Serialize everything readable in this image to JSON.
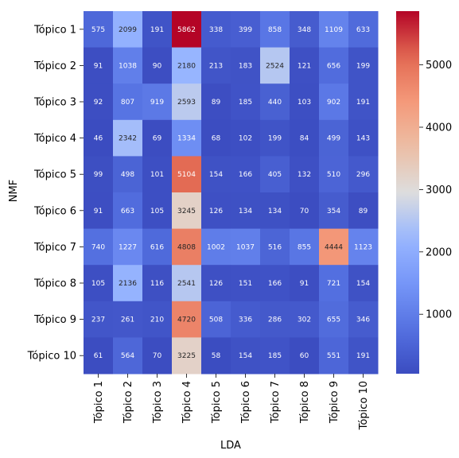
{
  "chart_data": {
    "type": "heatmap",
    "title": "",
    "xlabel": "LDA",
    "ylabel": "NMF",
    "x_categories": [
      "Tópico 1",
      "Tópico 2",
      "Tópico 3",
      "Tópico 4",
      "Tópico 5",
      "Tópico 6",
      "Tópico 7",
      "Tópico 8",
      "Tópico 9",
      "Tópico 10"
    ],
    "y_categories": [
      "Tópico 1",
      "Tópico 2",
      "Tópico 3",
      "Tópico 4",
      "Tópico 5",
      "Tópico 6",
      "Tópico 7",
      "Tópico 8",
      "Tópico 9",
      "Tópico 10"
    ],
    "values": [
      [
        575,
        2099,
        191,
        5862,
        338,
        399,
        858,
        348,
        1109,
        633
      ],
      [
        91,
        1038,
        90,
        2180,
        213,
        183,
        2524,
        121,
        656,
        199
      ],
      [
        92,
        807,
        919,
        2593,
        89,
        185,
        440,
        103,
        902,
        191
      ],
      [
        46,
        2342,
        69,
        1334,
        68,
        102,
        199,
        84,
        499,
        143
      ],
      [
        99,
        498,
        101,
        5104,
        154,
        166,
        405,
        132,
        510,
        296
      ],
      [
        91,
        663,
        105,
        3245,
        126,
        134,
        134,
        70,
        354,
        89
      ],
      [
        740,
        1227,
        616,
        4808,
        1002,
        1037,
        516,
        855,
        4444,
        1123
      ],
      [
        105,
        2136,
        116,
        2541,
        126,
        151,
        166,
        91,
        721,
        154
      ],
      [
        237,
        261,
        210,
        4720,
        508,
        336,
        286,
        302,
        655,
        346
      ],
      [
        61,
        564,
        70,
        3225,
        58,
        154,
        185,
        60,
        551,
        191
      ]
    ],
    "colormap": "coolwarm",
    "color_range": [
      46,
      5862
    ],
    "colorbar_ticks": [
      1000,
      2000,
      3000,
      4000,
      5000
    ],
    "annotations": true
  }
}
